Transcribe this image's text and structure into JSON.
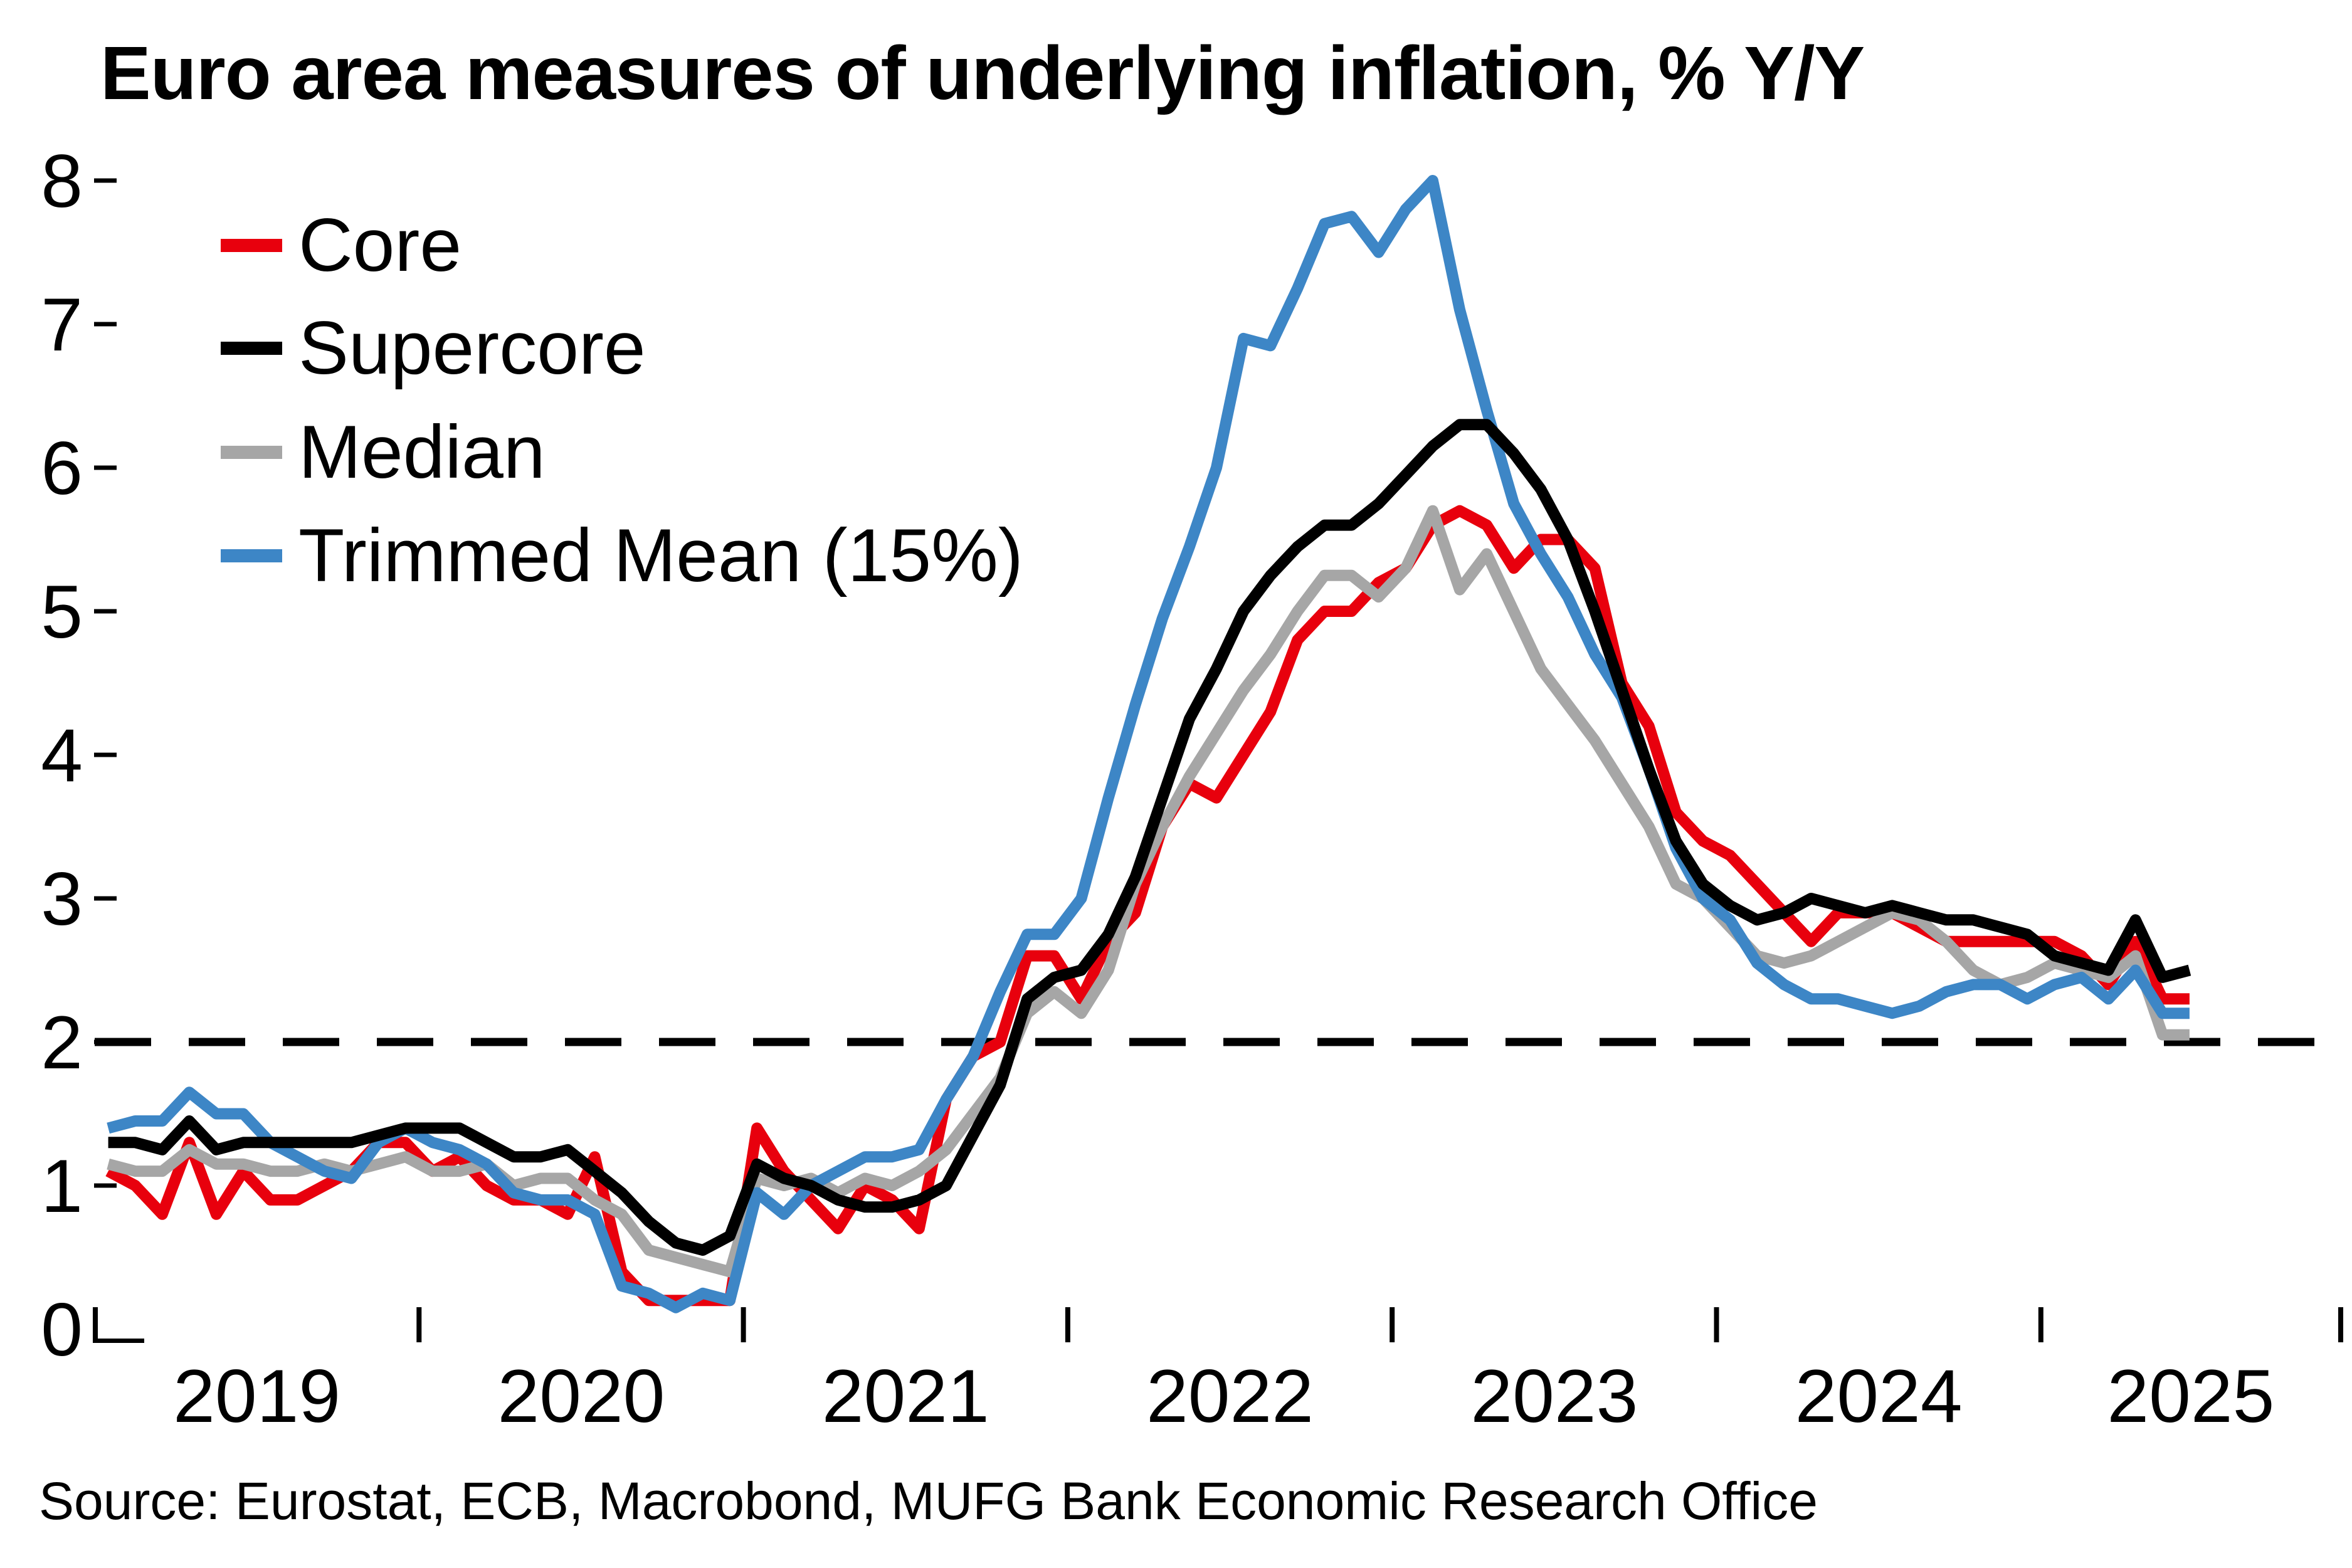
{
  "title": "Euro area measures of underlying inflation, % Y/Y",
  "source": "Source: Eurostat, ECB, Macrobond, MUFG Bank Economic Research Office",
  "colors": {
    "core": "#e8000d",
    "supercore": "#000000",
    "median": "#a6a6a6",
    "trimmed_mean": "#3d86c6",
    "target_line": "#000000",
    "background": "#ffffff",
    "text": "#000000"
  },
  "legend": {
    "items": [
      {
        "label": "Core",
        "color": "#e8000d"
      },
      {
        "label": "Supercore",
        "color": "#000000"
      },
      {
        "label": "Median",
        "color": "#a6a6a6"
      },
      {
        "label": "Trimmed Mean (15%)",
        "color": "#3d86c6"
      }
    ]
  },
  "chart_data": {
    "type": "line",
    "title": "Euro area measures of underlying inflation, % Y/Y",
    "ylabel": "% Y/Y",
    "ylim": [
      0,
      8
    ],
    "y_ticks": [
      0,
      1,
      2,
      3,
      4,
      5,
      6,
      7,
      8
    ],
    "x_year_labels": [
      "2019",
      "2020",
      "2021",
      "2022",
      "2023",
      "2024",
      "2025"
    ],
    "frequency": "monthly",
    "x_start": "2019-01",
    "x_end": "2025-06",
    "grid": false,
    "legend_position": "top-left-inside",
    "target_line": {
      "value": 2.0,
      "style": "dashed"
    },
    "series": [
      {
        "name": "Core",
        "color": "#e8000d",
        "values": [
          1.1,
          1.0,
          0.8,
          1.3,
          0.8,
          1.1,
          0.9,
          0.9,
          1.0,
          1.1,
          1.3,
          1.3,
          1.1,
          1.2,
          1.0,
          0.9,
          0.9,
          0.8,
          1.2,
          0.4,
          0.2,
          0.2,
          0.2,
          0.2,
          1.4,
          1.1,
          0.9,
          0.7,
          1.0,
          0.9,
          0.7,
          1.6,
          1.9,
          2.0,
          2.6,
          2.6,
          2.3,
          2.7,
          2.9,
          3.5,
          3.8,
          3.7,
          4.0,
          4.3,
          4.8,
          5.0,
          5.0,
          5.2,
          5.3,
          5.6,
          5.7,
          5.6,
          5.3,
          5.5,
          5.5,
          5.3,
          4.5,
          4.2,
          3.6,
          3.4,
          3.3,
          3.1,
          2.9,
          2.7,
          2.9,
          2.9,
          2.9,
          2.8,
          2.7,
          2.7,
          2.7,
          2.7,
          2.7,
          2.6,
          2.4,
          2.7,
          2.3,
          2.3
        ]
      },
      {
        "name": "Supercore",
        "color": "#000000",
        "values": [
          1.3,
          1.3,
          1.25,
          1.45,
          1.25,
          1.3,
          1.3,
          1.3,
          1.3,
          1.3,
          1.35,
          1.4,
          1.4,
          1.4,
          1.3,
          1.2,
          1.2,
          1.25,
          1.1,
          0.95,
          0.75,
          0.6,
          0.55,
          0.65,
          1.15,
          1.05,
          1.0,
          0.9,
          0.85,
          0.85,
          0.9,
          1.0,
          1.35,
          1.7,
          2.3,
          2.45,
          2.5,
          2.75,
          3.15,
          3.7,
          4.25,
          4.6,
          5.0,
          5.25,
          5.45,
          5.6,
          5.6,
          5.75,
          5.95,
          6.15,
          6.3,
          6.3,
          6.1,
          5.85,
          5.5,
          5.0,
          4.45,
          3.9,
          3.4,
          3.1,
          2.95,
          2.85,
          2.9,
          3.0,
          2.95,
          2.9,
          2.95,
          2.9,
          2.85,
          2.85,
          2.8,
          2.75,
          2.6,
          2.55,
          2.5,
          2.85,
          2.45,
          2.5
        ]
      },
      {
        "name": "Median",
        "color": "#a6a6a6",
        "values": [
          1.15,
          1.1,
          1.1,
          1.25,
          1.15,
          1.15,
          1.1,
          1.1,
          1.15,
          1.1,
          1.15,
          1.2,
          1.1,
          1.1,
          1.15,
          1.0,
          1.05,
          1.05,
          0.9,
          0.8,
          0.55,
          0.5,
          0.45,
          0.4,
          1.05,
          1.0,
          1.05,
          0.95,
          1.05,
          1.0,
          1.1,
          1.25,
          1.5,
          1.75,
          2.2,
          2.35,
          2.2,
          2.5,
          3.1,
          3.5,
          3.85,
          4.15,
          4.45,
          4.7,
          5.0,
          5.25,
          5.25,
          5.1,
          5.3,
          5.7,
          5.15,
          5.4,
          5.0,
          4.6,
          4.35,
          4.1,
          3.8,
          3.5,
          3.1,
          3.0,
          2.8,
          2.6,
          2.55,
          2.6,
          2.7,
          2.8,
          2.9,
          2.85,
          2.7,
          2.5,
          2.4,
          2.45,
          2.55,
          2.5,
          2.45,
          2.6,
          2.05,
          2.05
        ]
      },
      {
        "name": "Trimmed Mean (15%)",
        "color": "#3d86c6",
        "values": [
          1.4,
          1.45,
          1.45,
          1.65,
          1.5,
          1.5,
          1.3,
          1.2,
          1.1,
          1.05,
          1.3,
          1.4,
          1.3,
          1.25,
          1.15,
          0.95,
          0.9,
          0.9,
          0.8,
          0.3,
          0.25,
          0.15,
          0.25,
          0.2,
          0.95,
          0.8,
          1.0,
          1.1,
          1.2,
          1.2,
          1.25,
          1.6,
          1.9,
          2.35,
          2.75,
          2.75,
          3.0,
          3.7,
          4.35,
          4.95,
          5.45,
          6.0,
          6.9,
          6.85,
          7.25,
          7.7,
          7.75,
          7.5,
          7.8,
          8.0,
          7.1,
          6.4,
          5.75,
          5.4,
          5.1,
          4.7,
          4.4,
          3.9,
          3.35,
          3.0,
          2.85,
          2.55,
          2.4,
          2.3,
          2.3,
          2.25,
          2.2,
          2.25,
          2.35,
          2.4,
          2.4,
          2.3,
          2.4,
          2.45,
          2.3,
          2.5,
          2.2,
          2.2
        ]
      }
    ]
  }
}
